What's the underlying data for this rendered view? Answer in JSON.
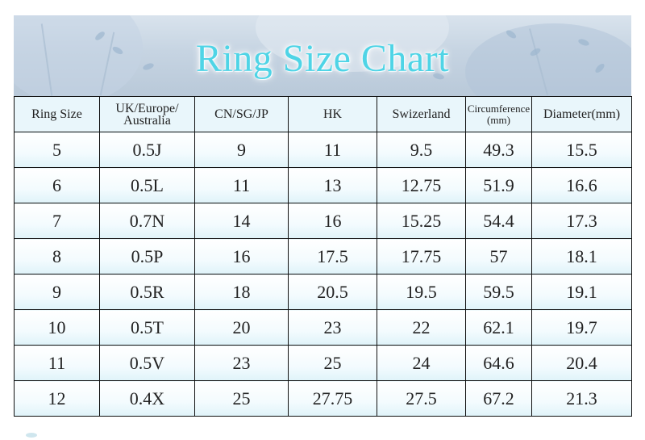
{
  "title": "Ring Size Chart",
  "columns": [
    {
      "line1": "Ring Size",
      "line2": ""
    },
    {
      "line1": "UK/Europe/",
      "line2": "Australia"
    },
    {
      "line1": "CN/SG/JP",
      "line2": ""
    },
    {
      "line1": "HK",
      "line2": ""
    },
    {
      "line1": "Swizerland",
      "line2": ""
    },
    {
      "line1": "Circumference",
      "line2": "(mm)"
    },
    {
      "line1": "Diameter(mm)",
      "line2": ""
    }
  ],
  "rows": [
    [
      "5",
      "0.5J",
      "9",
      "11",
      "9.5",
      "49.3",
      "15.5"
    ],
    [
      "6",
      "0.5L",
      "11",
      "13",
      "12.75",
      "51.9",
      "16.6"
    ],
    [
      "7",
      "0.7N",
      "14",
      "16",
      "15.25",
      "54.4",
      "17.3"
    ],
    [
      "8",
      "0.5P",
      "16",
      "17.5",
      "17.75",
      "57",
      "18.1"
    ],
    [
      "9",
      "0.5R",
      "18",
      "20.5",
      "19.5",
      "59.5",
      "19.1"
    ],
    [
      "10",
      "0.5T",
      "20",
      "23",
      "22",
      "62.1",
      "19.7"
    ],
    [
      "11",
      "0.5V",
      "23",
      "25",
      "24",
      "64.6",
      "20.4"
    ],
    [
      "12",
      "0.4X",
      "25",
      "27.75",
      "27.5",
      "67.2",
      "21.3"
    ]
  ],
  "colors": {
    "title": "#4fd4e6",
    "border": "#111111",
    "banner": "#c6d4e2"
  }
}
